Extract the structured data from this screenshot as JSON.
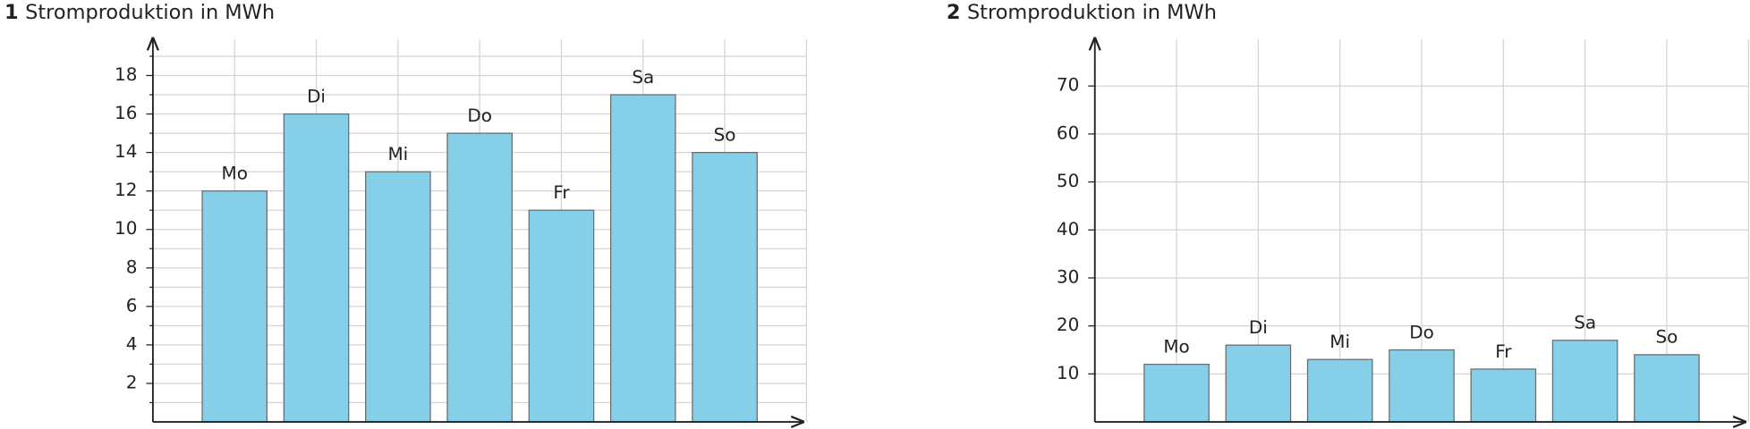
{
  "chart_data": [
    {
      "type": "bar",
      "number": "1",
      "title": "Stromproduktion in MWh",
      "categories": [
        "Mo",
        "Di",
        "Mi",
        "Do",
        "Fr",
        "Sa",
        "So"
      ],
      "values": [
        12,
        16,
        13,
        15,
        11,
        17,
        14
      ],
      "color": "#85cfe8",
      "ylim": [
        0,
        19.7
      ],
      "yticks": [
        2,
        4,
        6,
        8,
        10,
        12,
        14,
        16,
        18
      ],
      "minor_ticks": [
        1,
        3,
        5,
        7,
        9,
        11,
        13,
        15,
        17,
        19
      ],
      "grid": true
    },
    {
      "type": "bar",
      "number": "2",
      "title": "Stromproduktion in MWh",
      "categories": [
        "Mo",
        "Di",
        "Mi",
        "Do",
        "Fr",
        "Sa",
        "So"
      ],
      "values": [
        12,
        16,
        13,
        15,
        11,
        17,
        14
      ],
      "color": "#85cfe8",
      "ylim": [
        0,
        79
      ],
      "yticks": [
        10,
        20,
        30,
        40,
        50,
        60,
        70
      ],
      "grid": true
    }
  ]
}
